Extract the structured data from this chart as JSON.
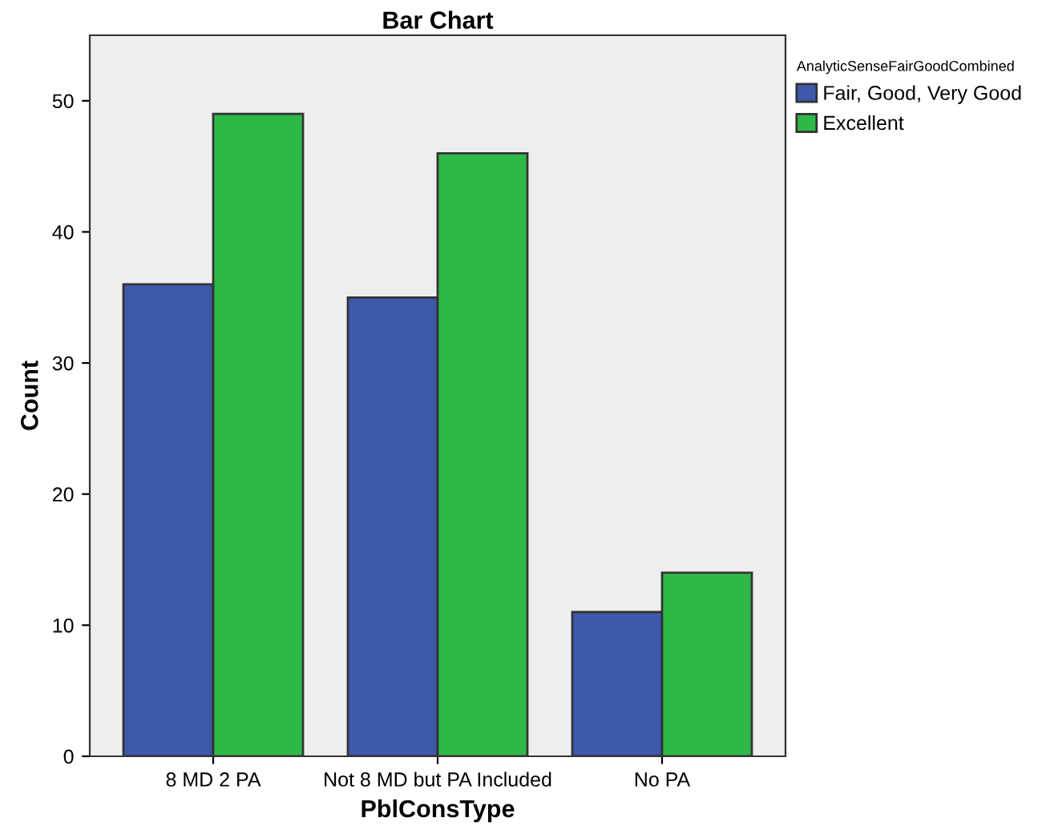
{
  "chart_data": {
    "type": "bar",
    "title": "Bar Chart",
    "xlabel": "PblConsType",
    "ylabel": "Count",
    "legend_title": "AnalyticSenseFairGoodCombined",
    "categories": [
      "8 MD 2 PA",
      "Not 8 MD but PA Included",
      "No PA"
    ],
    "series": [
      {
        "name": "Fair, Good, Very Good",
        "color": "#3e58ac",
        "values": [
          36,
          35,
          11
        ]
      },
      {
        "name": "Excellent",
        "color": "#2eb848",
        "values": [
          49,
          46,
          14
        ]
      }
    ],
    "ylim": [
      0,
      55
    ],
    "yticks": [
      0,
      10,
      20,
      30,
      40,
      50
    ],
    "grid": false,
    "legend": "top right"
  }
}
